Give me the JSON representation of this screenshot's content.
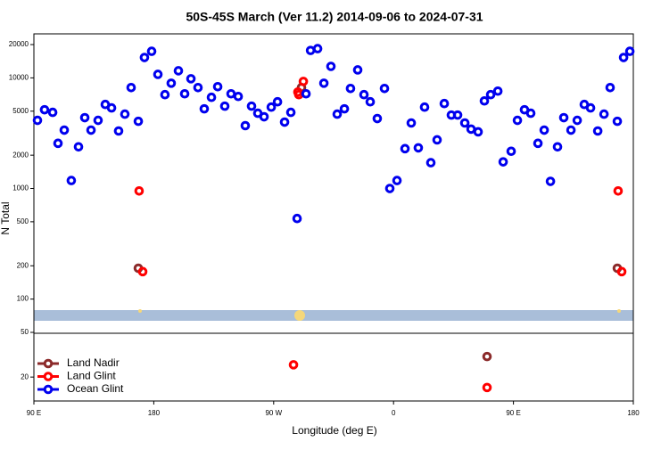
{
  "chart_data": {
    "type": "scatter",
    "title": "50S-45S March (Ver 11.2)   2014-09-06 to 2024-07-31",
    "x_label": "Longitude (deg E)",
    "y_label": "N Total",
    "log_scale": true,
    "xlim": [
      90,
      540
    ],
    "xticks": [
      {
        "value": 90,
        "label": "90 E"
      },
      180,
      {
        "value": 270,
        "label": "90 W"
      },
      {
        "value": 360,
        "label": "0"
      },
      {
        "value": 450,
        "label": "90 E"
      },
      {
        "value": 540,
        "label": "180"
      }
    ],
    "ylim": [
      50,
      25000
    ],
    "yticks": [
      100,
      200,
      500,
      1000,
      2000,
      5000,
      10000,
      20000
    ],
    "ylim_lower": [
      12,
      50
    ],
    "yticks_lower": [
      20,
      50
    ],
    "series": [
      {
        "name": "Land Nadir",
        "color": "#8b2a2a",
        "x": [
          168.4,
          290.9,
          430.2,
          528.0
        ],
        "values": [
          190,
          8170,
          31,
          190
        ]
      },
      {
        "name": "Land Glint",
        "color": "#ff0000",
        "x": [
          169.0,
          171.7,
          288.2,
          288.9,
          292.3,
          284.9,
          430.2,
          528.6,
          531.3
        ],
        "values": [
          950,
          177,
          7450,
          7050,
          9290,
          26,
          16,
          950,
          177
        ]
      },
      {
        "name": "Ocean Glint",
        "color": "#0000ee",
        "x": [
          92.7,
          98.0,
          104.1,
          108.1,
          112.8,
          118.1,
          123.5,
          128.2,
          132.9,
          138.2,
          143.6,
          148.3,
          153.6,
          158.3,
          163.0,
          168.4,
          173.0,
          178.4,
          183.1,
          188.4,
          193.1,
          198.5,
          203.2,
          207.9,
          213.2,
          217.9,
          223.3,
          228.0,
          233.3,
          238.0,
          243.4,
          248.7,
          253.4,
          258.1,
          262.8,
          268.2,
          272.9,
          278.2,
          282.9,
          287.6,
          294.3,
          297.7,
          303.0,
          307.7,
          313.0,
          317.7,
          323.1,
          327.7,
          333.1,
          337.8,
          342.5,
          347.8,
          353.2,
          357.2,
          362.6,
          368.6,
          373.3,
          378.6,
          383.3,
          388.0,
          392.7,
          398.1,
          403.4,
          408.1,
          413.5,
          418.2,
          423.5,
          428.2,
          432.9,
          438.3,
          442.3,
          448.3,
          453.0,
          458.3,
          463.0,
          468.4,
          473.1,
          477.8,
          483.1,
          487.8,
          493.2,
          497.9,
          503.2,
          507.9,
          513.3,
          518.0,
          522.6,
          528.0,
          532.7,
          537.4
        ],
        "values": [
          4130,
          5150,
          4880,
          2560,
          3370,
          1180,
          2380,
          4370,
          3370,
          4130,
          5750,
          5350,
          3310,
          4700,
          8170,
          4050,
          15280,
          17380,
          10760,
          7050,
          8950,
          11590,
          7180,
          9820,
          8170,
          5250,
          6670,
          8320,
          5550,
          7180,
          6790,
          3700,
          5550,
          4790,
          4450,
          5440,
          6080,
          3980,
          4880,
          535,
          7180,
          17700,
          18370,
          8950,
          12700,
          4700,
          5250,
          8020,
          11800,
          7050,
          6080,
          4290,
          8020,
          1000,
          1180,
          2290,
          3910,
          2330,
          5440,
          1710,
          2750,
          5860,
          4610,
          4610,
          3910,
          3440,
          3250,
          6190,
          7050,
          7590,
          1740,
          2170,
          4130,
          5150,
          4790,
          2560,
          3370,
          1160,
          2380,
          4370,
          3370,
          4130,
          5750,
          5350,
          3310,
          4700,
          8170,
          4050,
          15280,
          17380
        ]
      }
    ]
  }
}
